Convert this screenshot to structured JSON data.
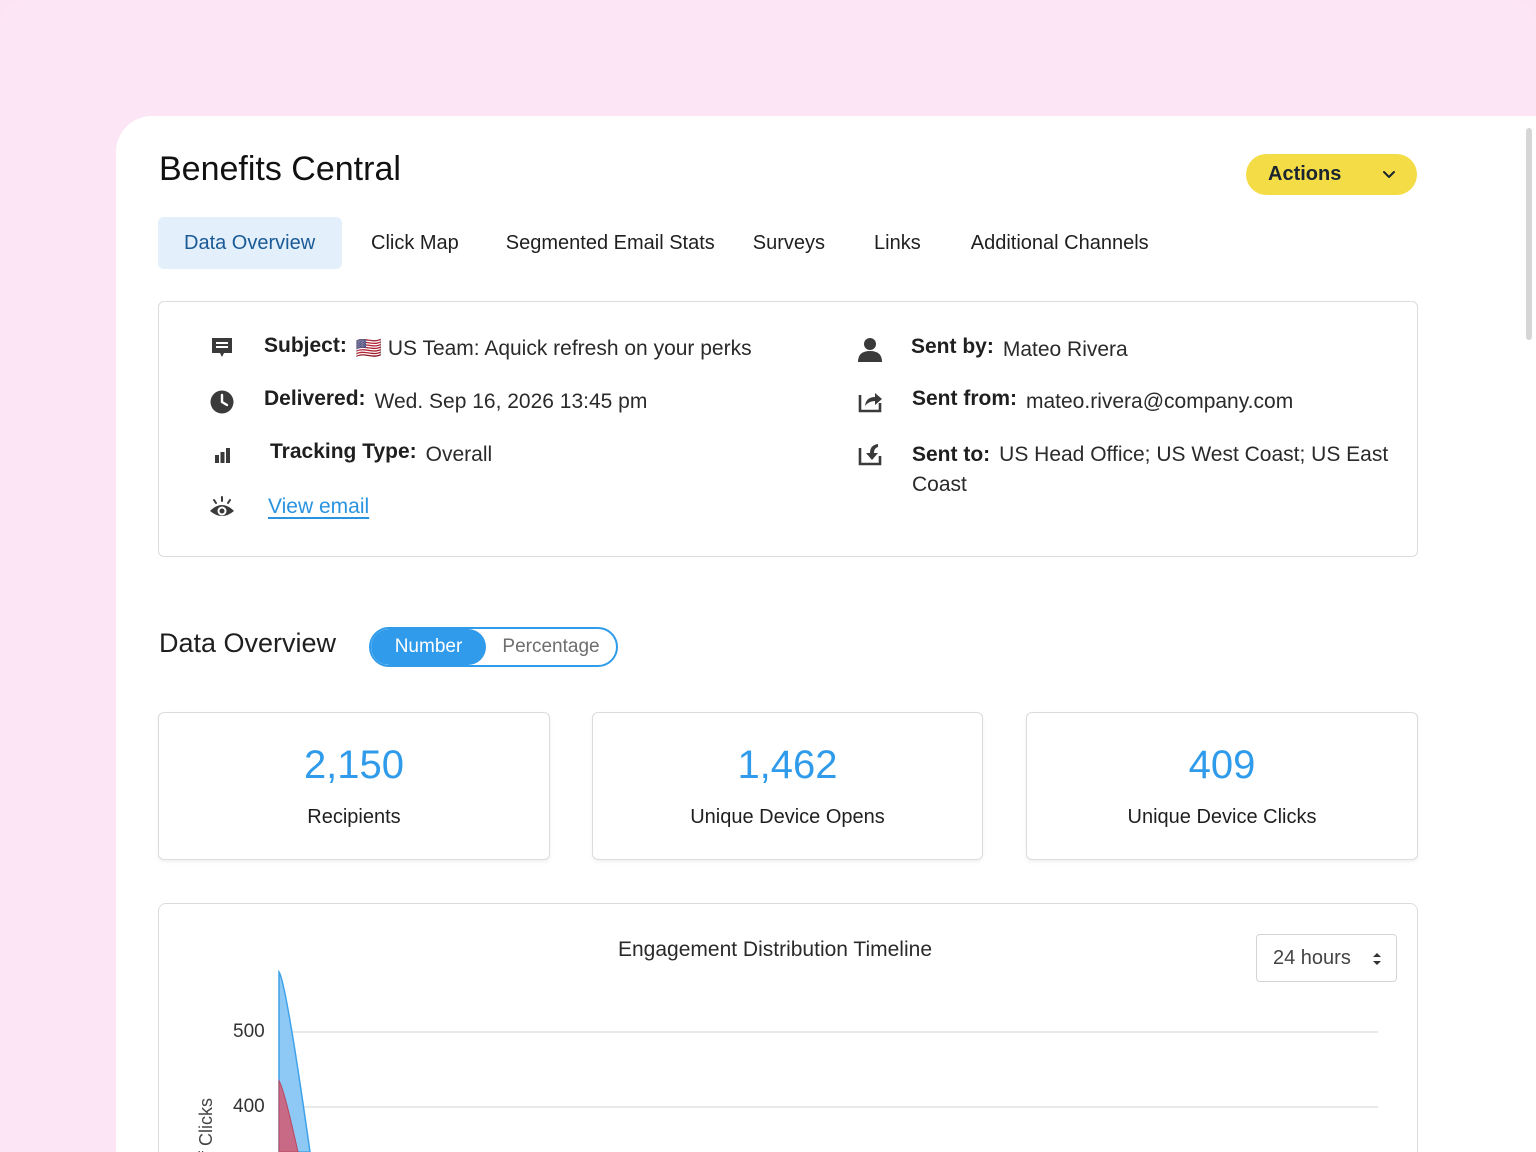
{
  "app": {
    "title": "Benefits Central",
    "actions_label": "Actions"
  },
  "tabs": [
    {
      "label": "Data Overview",
      "active": true
    },
    {
      "label": "Click Map"
    },
    {
      "label": "Segmented Email Stats"
    },
    {
      "label": "Surveys"
    },
    {
      "label": "Links"
    },
    {
      "label": "Additional Channels"
    }
  ],
  "details": {
    "subject_label": "Subject:",
    "subject_value": "🇺🇸 US Team: Aquick refresh on your perks",
    "delivered_label": "Delivered:",
    "delivered_value": "Wed. Sep 16, 2026 13:45 pm",
    "tracking_label": "Tracking Type:",
    "tracking_value": "Overall",
    "view_email": "View email",
    "sent_by_label": "Sent by:",
    "sent_by_value": "Mateo Rivera",
    "sent_from_label": "Sent from:",
    "sent_from_value": "mateo.rivera@company.com",
    "sent_to_label": "Sent to:",
    "sent_to_value": "US Head Office; US West Coast; US East Coast"
  },
  "overview": {
    "title": "Data Overview",
    "toggle_number": "Number",
    "toggle_percentage": "Percentage",
    "stats": [
      {
        "value": "2,150",
        "caption": "Recipients"
      },
      {
        "value": "1,462",
        "caption": "Unique Device Opens"
      },
      {
        "value": "409",
        "caption": "Unique Device Clicks"
      }
    ]
  },
  "chart_panel": {
    "title": "Engagement Distribution Timeline",
    "range_select": "24 hours",
    "ylabel_visible": "f Clicks"
  },
  "chart_data": {
    "type": "area",
    "title": "Engagement Distribution Timeline",
    "ylabel": "f Clicks",
    "yticks": [
      "500",
      "400"
    ],
    "series": [
      {
        "color": "#8ec9f5",
        "stroke": "#3ea2ea",
        "peak": 580
      },
      {
        "color": "#c86a86",
        "stroke": "#b8475e",
        "peak": 435
      }
    ]
  },
  "colors": {
    "accent": "#2f9bea",
    "actions": "#f4dc47",
    "bg": "#fce6f5"
  }
}
